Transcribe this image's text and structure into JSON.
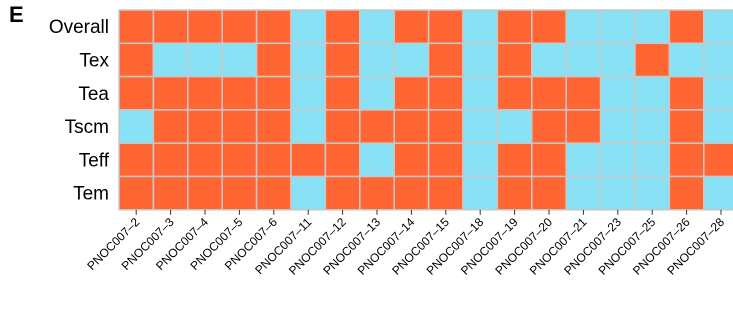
{
  "panel_label": "E",
  "colors": {
    "high": "#FF6633",
    "low": "#88E1F5",
    "grid": "#C8C8C8"
  },
  "chart_data": {
    "type": "heatmap",
    "title": "",
    "rows": [
      "Overall",
      "Tex",
      "Tea",
      "Tscm",
      "Teff",
      "Tem"
    ],
    "columns": [
      "PNOC007–2",
      "PNOC007–3",
      "PNOC007–4",
      "PNOC007–5",
      "PNOC007–6",
      "PNOC007–11",
      "PNOC007–12",
      "PNOC007–13",
      "PNOC007–14",
      "PNOC007–15",
      "PNOC007–18",
      "PNOC007–19",
      "PNOC007–20",
      "PNOC007–21",
      "PNOC007–23",
      "PNOC007–25",
      "PNOC007–26",
      "PNOC007–28"
    ],
    "legend": {
      "1": "orange",
      "0": "light blue"
    },
    "values": [
      [
        1,
        1,
        1,
        1,
        1,
        0,
        1,
        0,
        1,
        1,
        0,
        1,
        1,
        0,
        0,
        0,
        1,
        0
      ],
      [
        1,
        0,
        0,
        0,
        1,
        0,
        1,
        0,
        0,
        1,
        0,
        1,
        0,
        0,
        0,
        1,
        0,
        0
      ],
      [
        1,
        1,
        1,
        1,
        1,
        0,
        1,
        0,
        1,
        1,
        0,
        1,
        1,
        1,
        0,
        0,
        1,
        0
      ],
      [
        0,
        1,
        1,
        1,
        1,
        0,
        1,
        1,
        1,
        1,
        0,
        0,
        1,
        1,
        0,
        0,
        1,
        0
      ],
      [
        1,
        1,
        1,
        1,
        1,
        1,
        1,
        0,
        1,
        1,
        0,
        1,
        1,
        0,
        0,
        0,
        1,
        1
      ],
      [
        1,
        1,
        1,
        1,
        1,
        0,
        1,
        1,
        1,
        1,
        0,
        1,
        1,
        0,
        0,
        0,
        1,
        0
      ]
    ]
  }
}
